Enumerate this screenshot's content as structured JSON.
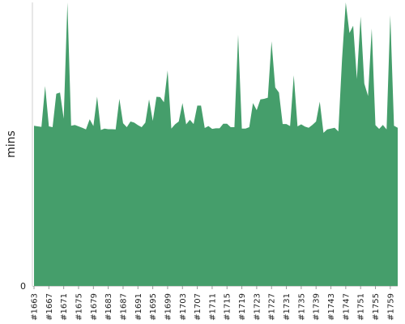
{
  "chart_data": {
    "type": "area",
    "title": "",
    "xlabel": "",
    "ylabel": "mins",
    "color": "#459e6b",
    "ylim": [
      0,
      100
    ],
    "grid": false,
    "legend": "none",
    "x": [
      "#1663",
      "#1664",
      "#1665",
      "#1666",
      "#1667",
      "#1668",
      "#1669",
      "#1670",
      "#1671",
      "#1672",
      "#1673",
      "#1674",
      "#1675",
      "#1676",
      "#1677",
      "#1678",
      "#1679",
      "#1680",
      "#1681",
      "#1682",
      "#1683",
      "#1684",
      "#1685",
      "#1686",
      "#1687",
      "#1688",
      "#1689",
      "#1690",
      "#1691",
      "#1692",
      "#1693",
      "#1694",
      "#1695",
      "#1696",
      "#1697",
      "#1698",
      "#1699",
      "#1700",
      "#1701",
      "#1702",
      "#1703",
      "#1704",
      "#1705",
      "#1706",
      "#1707",
      "#1708",
      "#1709",
      "#1710",
      "#1711",
      "#1712",
      "#1713",
      "#1714",
      "#1715",
      "#1716",
      "#1717",
      "#1718",
      "#1719",
      "#1720",
      "#1721",
      "#1722",
      "#1723",
      "#1724",
      "#1725",
      "#1726",
      "#1727",
      "#1728",
      "#1729",
      "#1730",
      "#1731",
      "#1732",
      "#1733",
      "#1734",
      "#1735",
      "#1736",
      "#1737",
      "#1738",
      "#1739",
      "#1740",
      "#1741",
      "#1742",
      "#1743",
      "#1744",
      "#1745",
      "#1746",
      "#1747",
      "#1748",
      "#1749",
      "#1750",
      "#1751",
      "#1752",
      "#1753",
      "#1754",
      "#1755",
      "#1756",
      "#1757",
      "#1758",
      "#1759",
      "#1760",
      "#1761"
    ],
    "tick_labels": [
      "#1663",
      "#1667",
      "#1671",
      "#1675",
      "#1679",
      "#1683",
      "#1687",
      "#1691",
      "#1695",
      "#1699",
      "#1703",
      "#1707",
      "#1711",
      "#1715",
      "#1719",
      "#1723",
      "#1727",
      "#1731",
      "#1735",
      "#1739",
      "#1743",
      "#1747",
      "#1751",
      "#1755",
      "#1759"
    ],
    "y_ticks": [
      0
    ],
    "values": [
      56.5,
      56.3,
      56.1,
      70.5,
      56.3,
      56,
      67.8,
      68.2,
      59,
      100,
      56.5,
      56.8,
      56.3,
      55.8,
      55.2,
      58.8,
      56.4,
      66.8,
      55,
      55.5,
      55.3,
      55.3,
      55.2,
      66,
      57.4,
      56,
      58,
      57.6,
      56.7,
      56,
      57.6,
      65.8,
      58.2,
      66.7,
      66.6,
      64.8,
      76,
      55.5,
      57,
      58,
      64.5,
      57,
      58.6,
      57.1,
      63.6,
      63.6,
      55.7,
      56.4,
      55.4,
      55.6,
      55.6,
      57.2,
      57.2,
      56,
      56,
      88.6,
      55.5,
      55.5,
      56,
      64.5,
      62,
      65.8,
      66,
      66.4,
      86.3,
      70,
      68.2,
      57.1,
      57.1,
      56.4,
      74.3,
      56.3,
      57,
      56.2,
      55.8,
      56.8,
      58,
      65,
      54,
      55.2,
      55.5,
      55.8,
      54.5,
      80,
      100,
      89.2,
      91.8,
      73,
      95,
      71.4,
      67,
      90.8,
      56.7,
      55.4,
      56.8,
      55.2,
      95.5,
      56.5,
      55.8
    ]
  }
}
